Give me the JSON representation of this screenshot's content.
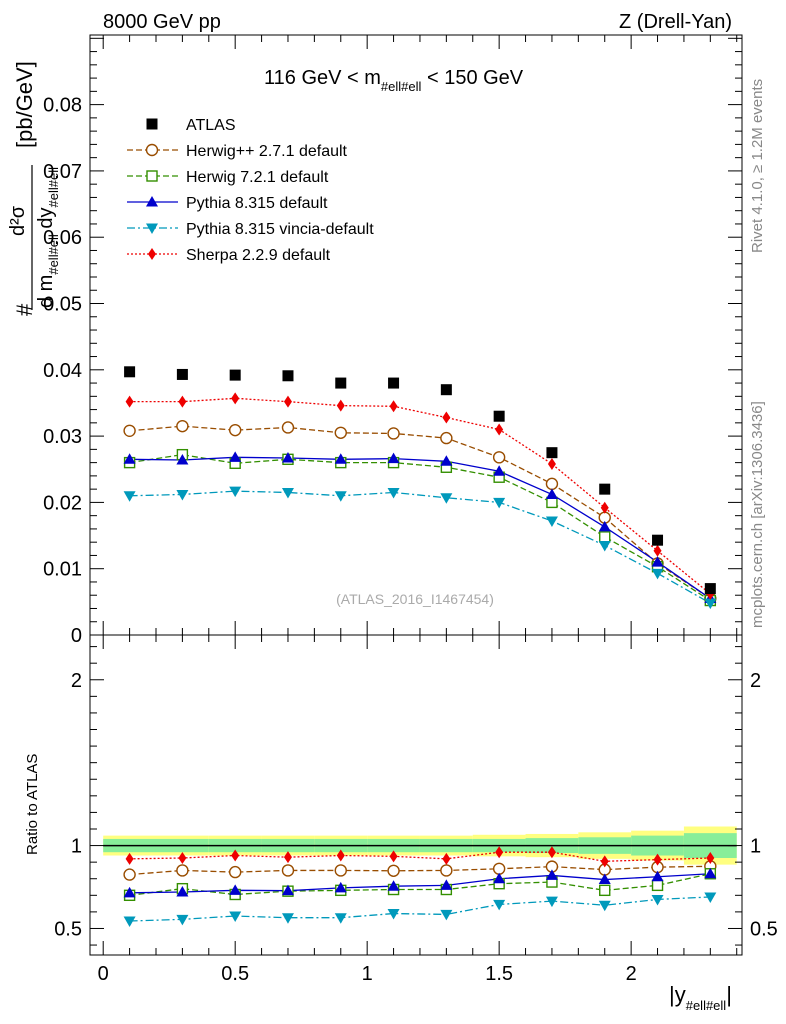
{
  "header": {
    "left": "8000 GeV pp",
    "right": "Z (Drell-Yan)"
  },
  "side": {
    "rivet": "Rivet 4.1.0, ≥ 1.2M events",
    "mcplots": "mcplots.cern.ch [arXiv:1306.3436]"
  },
  "chart_data": {
    "type": "scatter",
    "title": "116 GeV < m_#ell#ell < 150 GeV",
    "title_parts": {
      "pre": "116 GeV < m",
      "sub": "#ell#ell",
      "post": " < 150 GeV"
    },
    "analysis_label": "(ATLAS_2016_I1467454)",
    "ylabel": {
      "hash": "#",
      "num": "d²σ",
      "den_d1": "d m",
      "den_sub1": "#ell#ell",
      "den_d2": " dy",
      "den_sub2": "#ell#ell",
      "unit": "[pb/GeV]"
    },
    "xlabel": {
      "main": "|y",
      "sub": "#ell#ell",
      "end": "|"
    },
    "ratio_ylabel": "Ratio to ATLAS",
    "xlim": [
      -0.05,
      2.42
    ],
    "ylim": [
      0,
      0.0905
    ],
    "ratio_ylim": [
      0.34,
      2.27
    ],
    "x_ticks": [
      {
        "v": 0,
        "label": "0"
      },
      {
        "v": 0.5,
        "label": "0.5"
      },
      {
        "v": 1,
        "label": "1"
      },
      {
        "v": 1.5,
        "label": "1.5"
      },
      {
        "v": 2,
        "label": "2"
      }
    ],
    "y_ticks": [
      {
        "v": 0,
        "label": "0"
      },
      {
        "v": 0.01,
        "label": "0.01"
      },
      {
        "v": 0.02,
        "label": "0.02"
      },
      {
        "v": 0.03,
        "label": "0.03"
      },
      {
        "v": 0.04,
        "label": "0.04"
      },
      {
        "v": 0.05,
        "label": "0.05"
      },
      {
        "v": 0.06,
        "label": "0.06"
      },
      {
        "v": 0.07,
        "label": "0.07"
      },
      {
        "v": 0.08,
        "label": "0.08"
      }
    ],
    "ratio_ticks": [
      {
        "v": 0.5,
        "label": "0.5"
      },
      {
        "v": 1,
        "label": "1"
      },
      {
        "v": 2,
        "label": "2"
      }
    ],
    "x": [
      0.1,
      0.3,
      0.5,
      0.7,
      0.9,
      1.1,
      1.3,
      1.5,
      1.7,
      1.9,
      2.1,
      2.3
    ],
    "data": {
      "name": "ATLAS",
      "color": "#000000",
      "values": [
        0.0397,
        0.0393,
        0.0392,
        0.0391,
        0.038,
        0.038,
        0.037,
        0.033,
        0.0275,
        0.022,
        0.0143,
        0.007
      ],
      "band_inner": [
        0.04,
        0.04,
        0.04,
        0.04,
        0.04,
        0.04,
        0.04,
        0.04,
        0.045,
        0.05,
        0.06,
        0.075
      ],
      "band_outer": [
        0.06,
        0.06,
        0.06,
        0.06,
        0.06,
        0.06,
        0.06,
        0.065,
        0.07,
        0.08,
        0.09,
        0.115
      ]
    },
    "series": [
      {
        "name": "Herwig++ 2.7.1 default",
        "color": "#994d00",
        "dash": "6,3",
        "marker": "circle",
        "values": [
          0.0308,
          0.0315,
          0.0309,
          0.0313,
          0.0305,
          0.0304,
          0.0297,
          0.0268,
          0.0228,
          0.0177,
          0.0108,
          0.0055
        ],
        "ratio": [
          0.825,
          0.85,
          0.84,
          0.85,
          0.85,
          0.848,
          0.85,
          0.86,
          0.873,
          0.855,
          0.87,
          0.875
        ]
      },
      {
        "name": "Herwig 7.2.1 default",
        "color": "#338f00",
        "dash": "6,3",
        "marker": "square",
        "values": [
          0.026,
          0.0272,
          0.0259,
          0.0265,
          0.026,
          0.026,
          0.0253,
          0.0238,
          0.02,
          0.0148,
          0.0103,
          0.0052
        ],
        "ratio": [
          0.7,
          0.74,
          0.705,
          0.725,
          0.73,
          0.735,
          0.735,
          0.77,
          0.78,
          0.73,
          0.76,
          0.83
        ]
      },
      {
        "name": "Pythia 8.315 default",
        "color": "#0000cc",
        "dash": "",
        "marker": "triangle-up",
        "values": [
          0.0265,
          0.0264,
          0.0268,
          0.0267,
          0.0265,
          0.0266,
          0.0262,
          0.0247,
          0.0212,
          0.0163,
          0.011,
          0.0055
        ],
        "ratio": [
          0.715,
          0.72,
          0.73,
          0.728,
          0.745,
          0.755,
          0.76,
          0.8,
          0.82,
          0.795,
          0.812,
          0.83
        ]
      },
      {
        "name": "Pythia 8.315 vincia-default",
        "color": "#0099bb",
        "dash": "8,3,2,3",
        "marker": "triangle-down",
        "values": [
          0.021,
          0.0212,
          0.0217,
          0.0215,
          0.021,
          0.0215,
          0.0207,
          0.02,
          0.0172,
          0.0135,
          0.0093,
          0.0048
        ],
        "ratio": [
          0.545,
          0.555,
          0.575,
          0.565,
          0.565,
          0.59,
          0.585,
          0.645,
          0.665,
          0.64,
          0.675,
          0.69
        ]
      },
      {
        "name": "Sherpa 2.2.9 default",
        "color": "#ee0000",
        "dash": "2,2",
        "marker": "diamond",
        "values": [
          0.0352,
          0.0352,
          0.0357,
          0.0352,
          0.0346,
          0.0345,
          0.0328,
          0.031,
          0.0258,
          0.0192,
          0.0127,
          0.0062
        ],
        "ratio": [
          0.92,
          0.925,
          0.94,
          0.93,
          0.94,
          0.935,
          0.92,
          0.96,
          0.96,
          0.905,
          0.915,
          0.925
        ]
      }
    ]
  }
}
